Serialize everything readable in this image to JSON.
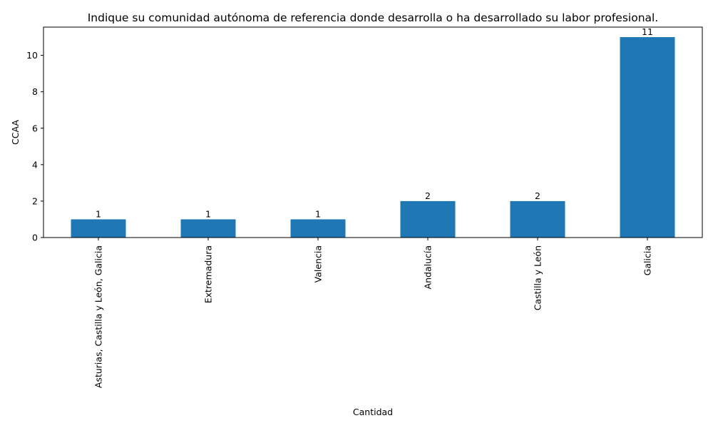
{
  "chart_data": {
    "type": "bar",
    "title": "Indique su comunidad autónoma de referencia donde desarrolla o ha desarrollado su labor profesional.",
    "xlabel": "Cantidad",
    "ylabel": "CCAA",
    "categories": [
      "Asturias, Castilla y León, Galicia",
      "Extremadura",
      "Valencia",
      "Andalucía",
      "Castilla y León",
      "Galicia"
    ],
    "values": [
      1,
      1,
      1,
      2,
      2,
      11
    ],
    "data_labels": [
      "1",
      "1",
      "1",
      "2",
      "2",
      "11"
    ],
    "ylim": [
      0,
      11.55
    ],
    "yticks": [
      0,
      2,
      4,
      6,
      8,
      10
    ],
    "ytick_labels": [
      "0",
      "2",
      "4",
      "6",
      "8",
      "10"
    ],
    "grid": false,
    "legend": "none",
    "bar_color": "#1f77b4"
  }
}
